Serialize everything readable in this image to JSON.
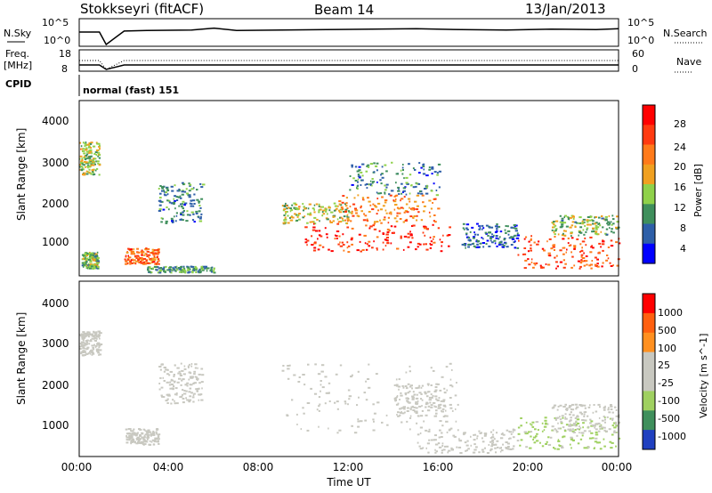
{
  "header": {
    "station": "Stokkseyri (fitACF)",
    "beam": "Beam 14",
    "date": "13/Jan/2013"
  },
  "noise_panel": {
    "left_label": "N.Sky",
    "right_label": "N.Search",
    "left_ticks": [
      "10^5",
      "10^0"
    ],
    "right_ticks": [
      "10^5",
      "10^0"
    ]
  },
  "freq_panel": {
    "left_label_1": "Freq.",
    "left_label_2": "[MHz]",
    "right_label": "Nave",
    "left_ticks": [
      "18",
      "8"
    ],
    "right_ticks": [
      "60",
      "0"
    ]
  },
  "cpid_panel": {
    "label": "CPID",
    "text": "normal (fast) 151"
  },
  "x_axis": {
    "label": "Time UT",
    "ticks": [
      "00:00",
      "04:00",
      "08:00",
      "12:00",
      "16:00",
      "20:00",
      "00:00"
    ]
  },
  "power_panel": {
    "ylabel": "Slant Range [km]",
    "yticks": [
      "4000",
      "3000",
      "2000",
      "1000"
    ],
    "colorbar_label": "Power [dB]",
    "colorbar_ticks": [
      "28",
      "24",
      "20",
      "16",
      "12",
      "8",
      "4"
    ]
  },
  "velocity_panel": {
    "ylabel": "Slant Range [km]",
    "yticks": [
      "4000",
      "3000",
      "2000",
      "1000"
    ],
    "colorbar_label": "Velocity [m s^-1]",
    "colorbar_ticks": [
      "1000",
      "500",
      "100",
      "25",
      "-25",
      "-100",
      "-500",
      "-1000"
    ]
  },
  "colors": {
    "power_scale": [
      "#0000ff",
      "#2e5fa8",
      "#3f8f5c",
      "#8fd14a",
      "#f0a020",
      "#ff7a1a",
      "#ff3a10",
      "#ff0000"
    ],
    "velocity_scale": [
      "#2040c0",
      "#3f8f5c",
      "#9fd060",
      "#c8c8c0",
      "#c8c8c0",
      "#ff9020",
      "#ff6010",
      "#ff0000"
    ]
  },
  "chart_data": [
    {
      "type": "line",
      "title": "N.Sky",
      "x": [
        0,
        0.9,
        1.2,
        2.0,
        3,
        5,
        6,
        7,
        9,
        11,
        13,
        15,
        17,
        19,
        21,
        23,
        24
      ],
      "series": [
        {
          "name": "N.Sky",
          "values": [
            2.6,
            2.6,
            0,
            2.8,
            2.9,
            3.0,
            3.4,
            2.9,
            3.0,
            3.1,
            3.2,
            3.3,
            3.1,
            3.0,
            3.2,
            3.1,
            3.3
          ]
        }
      ],
      "ylim": [
        0,
        5
      ]
    },
    {
      "type": "line",
      "title": "Freq.",
      "x": [
        0,
        0.9,
        1.2,
        2.0,
        24
      ],
      "series": [
        {
          "name": "Freq.",
          "values": [
            10.5,
            10.5,
            8,
            10.5,
            10.5
          ]
        },
        {
          "name": "Nave",
          "values": [
            30,
            30,
            0,
            30,
            30
          ]
        }
      ],
      "ylim": [
        8,
        18
      ]
    },
    {
      "type": "heatmap",
      "title": "Power [dB]",
      "xlabel": "Time UT",
      "ylabel": "Slant Range [km]",
      "xlim": [
        0,
        24
      ],
      "ylim": [
        200,
        4500
      ],
      "clim": [
        0,
        30
      ],
      "patches": [
        {
          "t": [
            0.0,
            0.9
          ],
          "r": [
            2700,
            3500
          ],
          "v": 14
        },
        {
          "t": [
            0.1,
            0.8
          ],
          "r": [
            400,
            800
          ],
          "v": 12
        },
        {
          "t": [
            2.0,
            3.5
          ],
          "r": [
            500,
            900
          ],
          "v": 22
        },
        {
          "t": [
            3.0,
            6.0
          ],
          "r": [
            300,
            450
          ],
          "v": 10
        },
        {
          "t": [
            3.5,
            5.5
          ],
          "r": [
            1500,
            2500
          ],
          "v": 8
        },
        {
          "t": [
            9.0,
            12.0
          ],
          "r": [
            1500,
            2000
          ],
          "v": 14
        },
        {
          "t": [
            10.0,
            16.5
          ],
          "r": [
            800,
            1500
          ],
          "v": 26
        },
        {
          "t": [
            11.5,
            16.0
          ],
          "r": [
            1500,
            2200
          ],
          "v": 20
        },
        {
          "t": [
            12.0,
            16.0
          ],
          "r": [
            2200,
            3000
          ],
          "v": 8
        },
        {
          "t": [
            17.0,
            19.5
          ],
          "r": [
            900,
            1500
          ],
          "v": 6
        },
        {
          "t": [
            19.5,
            24.0
          ],
          "r": [
            400,
            1200
          ],
          "v": 24
        },
        {
          "t": [
            21.0,
            24.0
          ],
          "r": [
            1200,
            1700
          ],
          "v": 12
        }
      ]
    },
    {
      "type": "heatmap",
      "title": "Velocity [m s^-1]",
      "xlabel": "Time UT",
      "ylabel": "Slant Range [km]",
      "xlim": [
        0,
        24
      ],
      "ylim": [
        200,
        4500
      ],
      "clim": [
        -1000,
        1000
      ],
      "patches": [
        {
          "t": [
            0.0,
            0.9
          ],
          "r": [
            2700,
            3300
          ],
          "v": -100
        },
        {
          "t": [
            2.0,
            3.5
          ],
          "r": [
            500,
            900
          ],
          "v": 0
        },
        {
          "t": [
            3.5,
            5.5
          ],
          "r": [
            1500,
            2500
          ],
          "v": -100
        },
        {
          "t": [
            9.0,
            17.0
          ],
          "r": [
            800,
            2500
          ],
          "v": 0
        },
        {
          "t": [
            14.0,
            16.5
          ],
          "r": [
            1200,
            2000
          ],
          "v": 100
        },
        {
          "t": [
            15.0,
            19.5
          ],
          "r": [
            300,
            900
          ],
          "v": -100
        },
        {
          "t": [
            19.5,
            24.0
          ],
          "r": [
            400,
            1200
          ],
          "v": -300
        },
        {
          "t": [
            21.0,
            24.0
          ],
          "r": [
            800,
            1500
          ],
          "v": 100
        }
      ]
    }
  ]
}
